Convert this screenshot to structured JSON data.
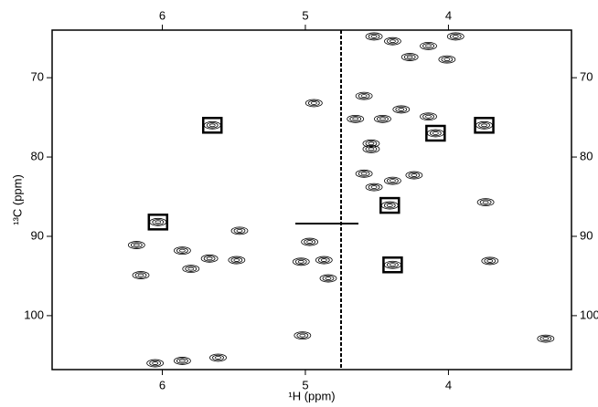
{
  "chart_data": {
    "type": "scatter",
    "x_label": "¹H (ppm)",
    "y_label": "¹³C (ppm)",
    "xlim": [
      6.77,
      3.14
    ],
    "ylim": [
      64.0,
      106.8
    ],
    "xticks": [
      6,
      5,
      4
    ],
    "yticks": [
      70,
      80,
      90,
      100
    ],
    "color": "#000000",
    "x": [
      4.94,
      4.54,
      4.54,
      3.74,
      3.71,
      5.46,
      6.18,
      6.15,
      5.03,
      5.02,
      3.32,
      4.39,
      4.14,
      4.01,
      4.27,
      4.52,
      3.95,
      4.59,
      4.33,
      4.14,
      4.65,
      4.46,
      4.59,
      4.39,
      4.24,
      4.52,
      5.86,
      5.67,
      5.48,
      5.8,
      4.97,
      4.87,
      4.84,
      6.05,
      5.86,
      5.61
    ],
    "values": [
      73.2,
      78.3,
      79.0,
      85.7,
      93.1,
      89.3,
      91.1,
      94.9,
      93.2,
      102.5,
      102.9,
      65.4,
      66.0,
      67.7,
      67.4,
      64.8,
      64.8,
      72.3,
      74.0,
      74.9,
      75.2,
      75.2,
      82.1,
      83.0,
      82.3,
      83.8,
      91.8,
      92.8,
      93.0,
      94.1,
      90.7,
      93.0,
      95.3,
      106.0,
      105.7,
      105.3
    ],
    "boxes": {
      "x": [
        5.65,
        4.09,
        3.75,
        4.41,
        6.03,
        4.39
      ],
      "y": [
        76.0,
        77.0,
        76.0,
        86.1,
        88.2,
        93.6
      ]
    }
  }
}
